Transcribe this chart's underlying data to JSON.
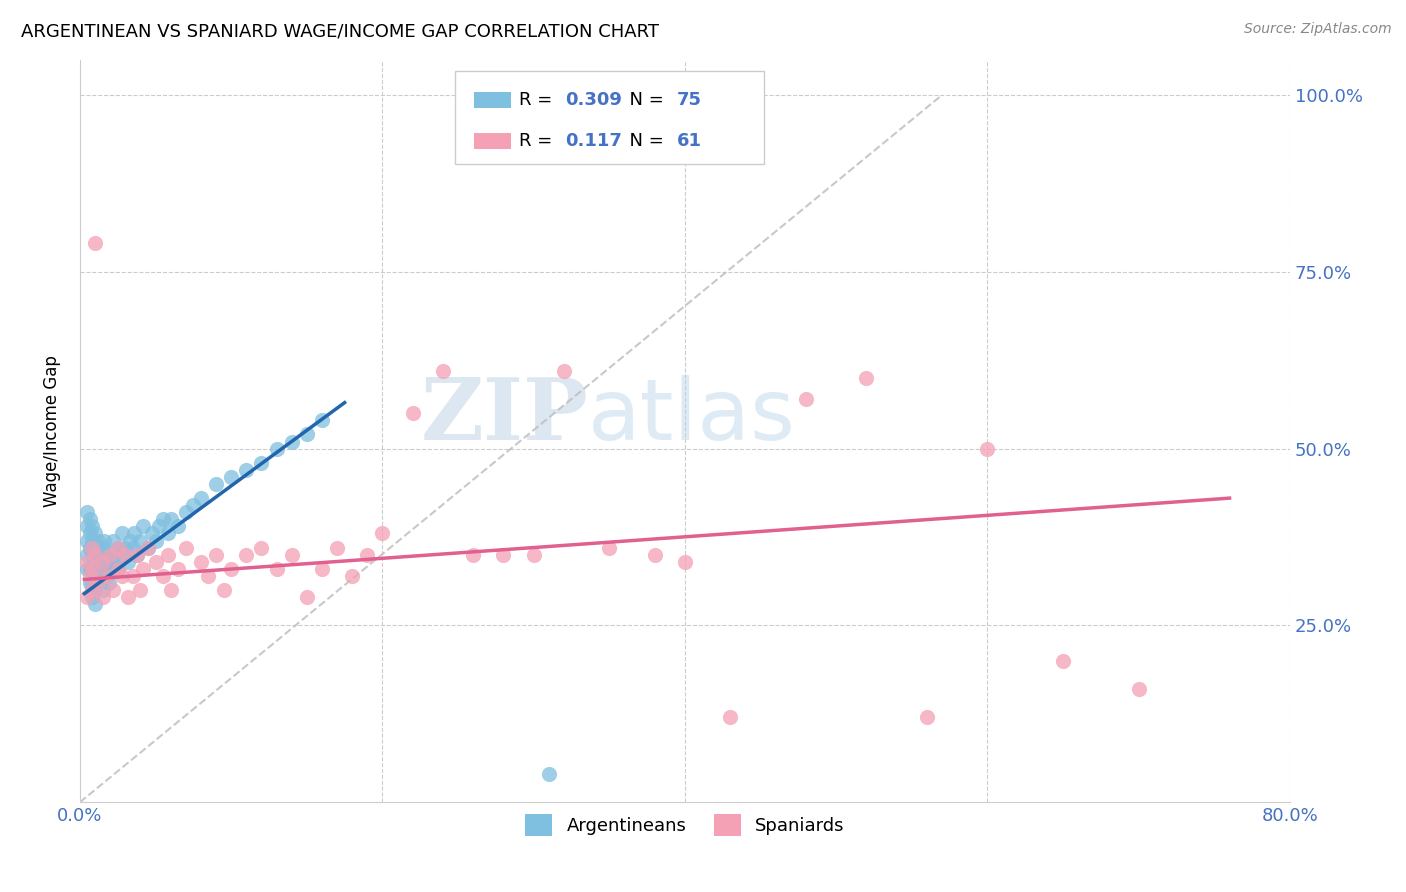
{
  "title": "ARGENTINEAN VS SPANIARD WAGE/INCOME GAP CORRELATION CHART",
  "source": "Source: ZipAtlas.com",
  "ylabel": "Wage/Income Gap",
  "xlabel_ticks": [
    "0.0%",
    "",
    "",
    "",
    "80.0%"
  ],
  "ylabel_ticks": [
    "",
    "25.0%",
    "50.0%",
    "75.0%",
    "100.0%"
  ],
  "xlim": [
    0.0,
    0.8
  ],
  "ylim": [
    0.0,
    1.05
  ],
  "argentinean_color": "#7fbfdf",
  "spaniard_color": "#f4a0b5",
  "argentinean_line_color": "#2166ac",
  "spaniard_line_color": "#e06090",
  "diagonal_color": "#bbbbbb",
  "argentinean_R": "0.309",
  "argentinean_N": "75",
  "spaniard_R": "0.117",
  "spaniard_N": "61",
  "watermark_zip": "ZIP",
  "watermark_atlas": "atlas",
  "legend_bottom_labels": [
    "Argentineans",
    "Spaniards"
  ],
  "arg_x": [
    0.005,
    0.005,
    0.005,
    0.005,
    0.005,
    0.007,
    0.007,
    0.007,
    0.007,
    0.007,
    0.008,
    0.008,
    0.008,
    0.008,
    0.008,
    0.008,
    0.009,
    0.009,
    0.009,
    0.01,
    0.01,
    0.01,
    0.01,
    0.01,
    0.01,
    0.012,
    0.012,
    0.012,
    0.013,
    0.013,
    0.015,
    0.015,
    0.015,
    0.016,
    0.016,
    0.018,
    0.018,
    0.019,
    0.019,
    0.02,
    0.022,
    0.022,
    0.023,
    0.025,
    0.025,
    0.028,
    0.028,
    0.03,
    0.032,
    0.033,
    0.035,
    0.036,
    0.038,
    0.04,
    0.042,
    0.045,
    0.048,
    0.05,
    0.052,
    0.055,
    0.058,
    0.06,
    0.065,
    0.07,
    0.075,
    0.08,
    0.09,
    0.1,
    0.11,
    0.12,
    0.13,
    0.14,
    0.15,
    0.16,
    0.31
  ],
  "arg_y": [
    0.33,
    0.35,
    0.37,
    0.39,
    0.41,
    0.31,
    0.33,
    0.36,
    0.38,
    0.4,
    0.29,
    0.31,
    0.33,
    0.35,
    0.37,
    0.39,
    0.3,
    0.33,
    0.36,
    0.28,
    0.3,
    0.32,
    0.34,
    0.36,
    0.38,
    0.31,
    0.34,
    0.37,
    0.33,
    0.36,
    0.3,
    0.33,
    0.36,
    0.34,
    0.37,
    0.32,
    0.35,
    0.31,
    0.34,
    0.33,
    0.34,
    0.37,
    0.35,
    0.33,
    0.36,
    0.35,
    0.38,
    0.36,
    0.34,
    0.37,
    0.36,
    0.38,
    0.35,
    0.37,
    0.39,
    0.36,
    0.38,
    0.37,
    0.39,
    0.4,
    0.38,
    0.4,
    0.39,
    0.41,
    0.42,
    0.43,
    0.45,
    0.46,
    0.47,
    0.48,
    0.5,
    0.51,
    0.52,
    0.54,
    0.04
  ],
  "spa_x": [
    0.005,
    0.005,
    0.007,
    0.008,
    0.008,
    0.009,
    0.01,
    0.01,
    0.012,
    0.015,
    0.015,
    0.018,
    0.02,
    0.022,
    0.025,
    0.025,
    0.028,
    0.03,
    0.032,
    0.035,
    0.038,
    0.04,
    0.042,
    0.045,
    0.05,
    0.055,
    0.058,
    0.06,
    0.065,
    0.07,
    0.08,
    0.085,
    0.09,
    0.095,
    0.1,
    0.11,
    0.12,
    0.13,
    0.14,
    0.15,
    0.16,
    0.17,
    0.18,
    0.19,
    0.2,
    0.22,
    0.24,
    0.26,
    0.28,
    0.3,
    0.32,
    0.35,
    0.38,
    0.4,
    0.43,
    0.48,
    0.52,
    0.56,
    0.6,
    0.65,
    0.7
  ],
  "spa_y": [
    0.34,
    0.29,
    0.32,
    0.36,
    0.3,
    0.33,
    0.35,
    0.79,
    0.31,
    0.34,
    0.29,
    0.32,
    0.35,
    0.3,
    0.33,
    0.36,
    0.32,
    0.35,
    0.29,
    0.32,
    0.35,
    0.3,
    0.33,
    0.36,
    0.34,
    0.32,
    0.35,
    0.3,
    0.33,
    0.36,
    0.34,
    0.32,
    0.35,
    0.3,
    0.33,
    0.35,
    0.36,
    0.33,
    0.35,
    0.29,
    0.33,
    0.36,
    0.32,
    0.35,
    0.38,
    0.55,
    0.61,
    0.35,
    0.35,
    0.35,
    0.61,
    0.36,
    0.35,
    0.34,
    0.12,
    0.57,
    0.6,
    0.12,
    0.5,
    0.2,
    0.16
  ]
}
